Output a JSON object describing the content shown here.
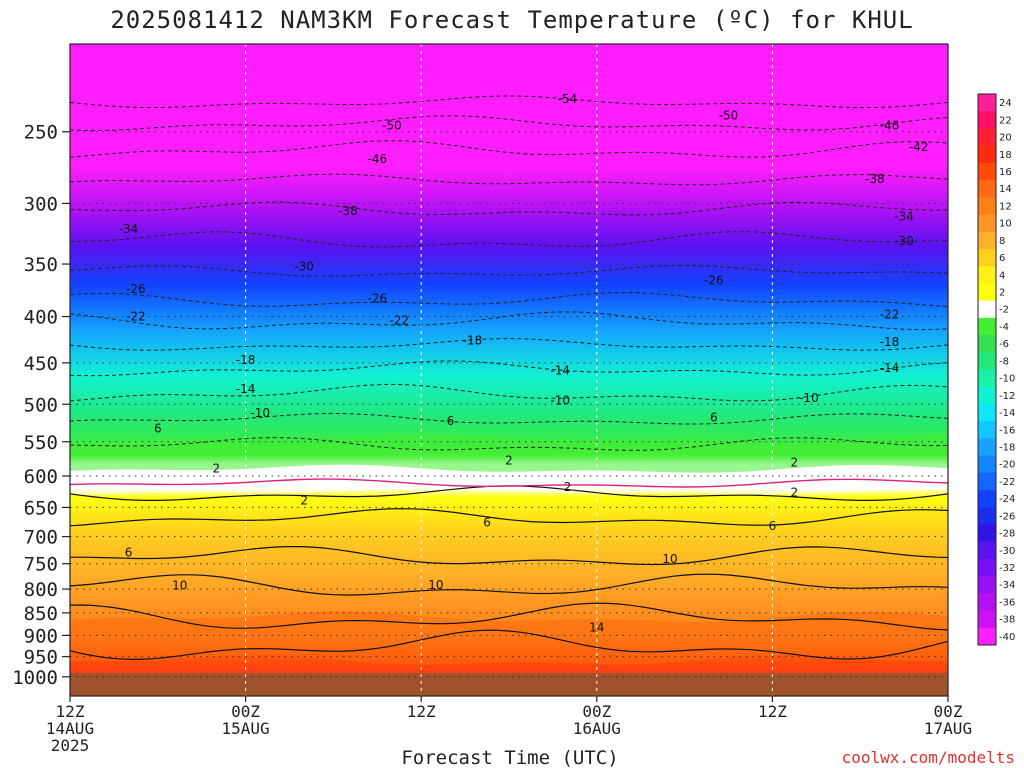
{
  "chart_data": {
    "type": "heatmap",
    "title": "2025081412 NAM3KM Forecast Temperature (ºC) for KHUL",
    "xlabel": "Forecast Time (UTC)",
    "ylabel": "",
    "credit": "coolwx.com/modelts",
    "x_hours": [
      0,
      60
    ],
    "y_pressure_range": [
      1050,
      200
    ],
    "y_ticks": [
      250,
      300,
      350,
      400,
      450,
      500,
      550,
      600,
      650,
      700,
      750,
      800,
      850,
      900,
      950,
      1000
    ],
    "x_ticks": [
      {
        "hour": 0,
        "lines": [
          "12Z",
          "14AUG",
          "2025"
        ]
      },
      {
        "hour": 12,
        "lines": [
          "00Z",
          "15AUG"
        ]
      },
      {
        "hour": 24,
        "lines": [
          "12Z"
        ]
      },
      {
        "hour": 36,
        "lines": [
          "00Z",
          "16AUG"
        ]
      },
      {
        "hour": 48,
        "lines": [
          "12Z"
        ]
      },
      {
        "hour": 60,
        "lines": [
          "00Z",
          "17AUG"
        ]
      }
    ],
    "ground_pressure": 990,
    "colorbar": {
      "labels": [
        "24",
        "22",
        "20",
        "18",
        "16",
        "14",
        "12",
        "10",
        "8",
        "6",
        "4",
        "2",
        "-2",
        "-4",
        "-6",
        "-8",
        "-10",
        "-12",
        "-14",
        "-16",
        "-18",
        "-20",
        "-22",
        "-24",
        "-26",
        "-28",
        "-30",
        "-32",
        "-34",
        "-36",
        "-38",
        "-40"
      ],
      "colors": [
        "#ff1f9a",
        "#ff1066",
        "#ff1e32",
        "#ff2a10",
        "#ff4a0a",
        "#ff6a10",
        "#ff8018",
        "#ff9522",
        "#ffb128",
        "#ffcf1e",
        "#fff01a",
        "#ffff10",
        "#ffffff",
        "#44ee33",
        "#33e055",
        "#22e87a",
        "#1af0a8",
        "#12f2d2",
        "#10e6f5",
        "#12c6ff",
        "#14a4ff",
        "#1584ff",
        "#1466ff",
        "#1244ff",
        "#1a2ef0",
        "#3214e8",
        "#5a12f0",
        "#7a10f5",
        "#9a10f5",
        "#b412f5",
        "#cc12f5",
        "#ff1eff"
      ]
    },
    "isotherm_labels": [
      {
        "t": "-54",
        "h": 34,
        "p": 230
      },
      {
        "t": "-50",
        "h": 45,
        "p": 240
      },
      {
        "t": "-50",
        "h": 22,
        "p": 246
      },
      {
        "t": "-46",
        "h": 56,
        "p": 246
      },
      {
        "t": "-46",
        "h": 21,
        "p": 268
      },
      {
        "t": "-42",
        "h": 58,
        "p": 260
      },
      {
        "t": "-38",
        "h": 19,
        "p": 306
      },
      {
        "t": "-38",
        "h": 55,
        "p": 282
      },
      {
        "t": "-34",
        "h": 4,
        "p": 320
      },
      {
        "t": "-34",
        "h": 57,
        "p": 310
      },
      {
        "t": "-30",
        "h": 16,
        "p": 352
      },
      {
        "t": "-30",
        "h": 57,
        "p": 330
      },
      {
        "t": "-26",
        "h": 4.5,
        "p": 373
      },
      {
        "t": "-26",
        "h": 21,
        "p": 382
      },
      {
        "t": "-26",
        "h": 44,
        "p": 365
      },
      {
        "t": "-22",
        "h": 4.5,
        "p": 400
      },
      {
        "t": "-22",
        "h": 22.5,
        "p": 404
      },
      {
        "t": "-22",
        "h": 56,
        "p": 398
      },
      {
        "t": "-18",
        "h": 27.5,
        "p": 425
      },
      {
        "t": "-18",
        "h": 12,
        "p": 447
      },
      {
        "t": "-18",
        "h": 56,
        "p": 427
      },
      {
        "t": "-14",
        "h": 12,
        "p": 481
      },
      {
        "t": "-14",
        "h": 33.5,
        "p": 459
      },
      {
        "t": "-14",
        "h": 56,
        "p": 456
      },
      {
        "t": "-10",
        "h": 13,
        "p": 511
      },
      {
        "t": "-10",
        "h": 33.5,
        "p": 495
      },
      {
        "t": "-10",
        "h": 50.5,
        "p": 492
      },
      {
        "t": "6",
        "h": 6,
        "p": 532
      },
      {
        "t": "6",
        "h": 26,
        "p": 522
      },
      {
        "t": "6",
        "h": 44,
        "p": 517
      },
      {
        "t": "2",
        "h": 10,
        "p": 589
      },
      {
        "t": "2",
        "h": 30,
        "p": 577
      },
      {
        "t": "2",
        "h": 49.5,
        "p": 580
      },
      {
        "t": "2",
        "h": 16,
        "p": 639
      },
      {
        "t": "2",
        "h": 34,
        "p": 617
      },
      {
        "t": "2",
        "h": 49.5,
        "p": 626
      },
      {
        "t": "6",
        "h": 28.5,
        "p": 675
      },
      {
        "t": "6",
        "h": 48,
        "p": 681
      },
      {
        "t": "6",
        "h": 4,
        "p": 729
      },
      {
        "t": "10",
        "h": 41,
        "p": 741
      },
      {
        "t": "10",
        "h": 25,
        "p": 792
      },
      {
        "t": "10",
        "h": 7.5,
        "p": 793
      },
      {
        "t": "14",
        "h": 36,
        "p": 882
      }
    ]
  }
}
